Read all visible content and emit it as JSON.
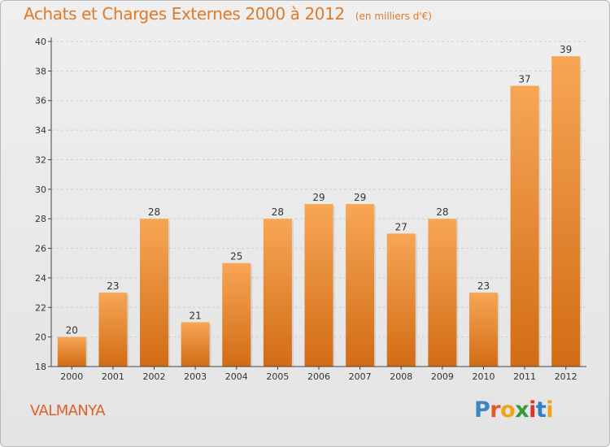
{
  "title": "Achats et Charges Externes 2000 à 2012",
  "subtitle": "(en milliers d'€)",
  "commune": "VALMANYA",
  "logo": {
    "text": "Proxiti",
    "letters": [
      "P",
      "r",
      "o",
      "x",
      "i",
      "t",
      "i"
    ],
    "colors": [
      "#3b86c7",
      "#e65a2a",
      "#f2a21a",
      "#3a9a3a",
      "#d8342c",
      "#2f7fc9",
      "#f2a21a"
    ]
  },
  "colors": {
    "bar_light": "#f7a655",
    "bar_dark": "#d26c14",
    "text": "#e07a28",
    "axis": "#444444"
  },
  "chart_data": {
    "type": "bar",
    "categories": [
      "2000",
      "2001",
      "2002",
      "2003",
      "2004",
      "2005",
      "2006",
      "2007",
      "2008",
      "2009",
      "2010",
      "2011",
      "2012"
    ],
    "values": [
      20,
      23,
      28,
      21,
      25,
      28,
      29,
      29,
      27,
      28,
      23,
      37,
      39
    ],
    "value_labels": [
      "20",
      "23",
      "28",
      "21",
      "25",
      "28",
      "29",
      "29",
      "27",
      "28",
      "23",
      "37",
      "39"
    ],
    "yticks": [
      "18",
      "20",
      "22",
      "24",
      "26",
      "28",
      "30",
      "32",
      "34",
      "36",
      "38",
      "40"
    ],
    "ylim": [
      18,
      40
    ],
    "grid": true
  }
}
